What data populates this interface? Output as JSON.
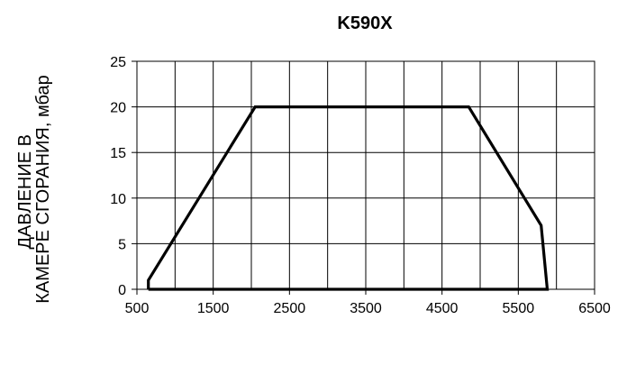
{
  "chart_data": {
    "type": "line",
    "title": "K590X",
    "ylabel_lines": [
      "ДАВЛЕНИЕ В",
      "КАМЕРЕ СГОРАНИЯ, мбар"
    ],
    "xlabel": "",
    "xlim": [
      500,
      6500
    ],
    "ylim": [
      0,
      25
    ],
    "xticks": [
      500,
      1500,
      2500,
      3500,
      4500,
      5500,
      6500
    ],
    "yticks": [
      0,
      5,
      10,
      15,
      20,
      25
    ],
    "x_minor_grid": [
      1000,
      2000,
      3000,
      4000,
      5000,
      6000
    ],
    "grid": true,
    "legend": "none",
    "series": [
      {
        "color": "#000000",
        "points": [
          {
            "x": 650,
            "y": 0
          },
          {
            "x": 650,
            "y": 1
          },
          {
            "x": 2050,
            "y": 20
          },
          {
            "x": 4850,
            "y": 20
          },
          {
            "x": 5800,
            "y": 7
          },
          {
            "x": 5880,
            "y": 0
          },
          {
            "x": 650,
            "y": 0
          }
        ]
      }
    ]
  }
}
